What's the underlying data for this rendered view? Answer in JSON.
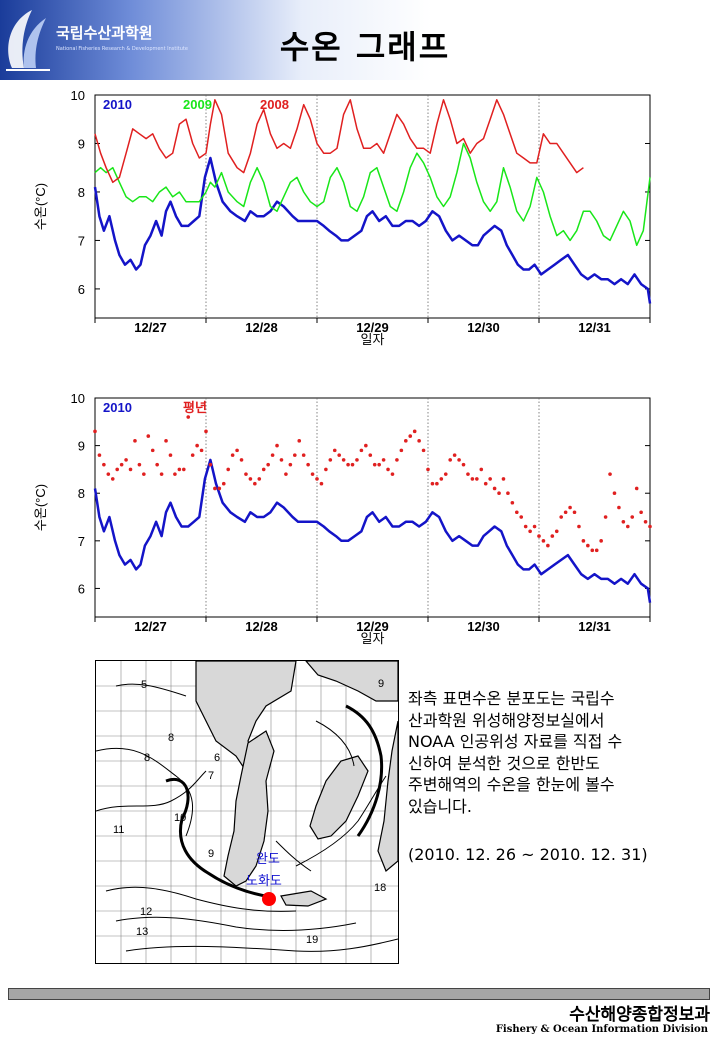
{
  "header": {
    "title": "수온 그래프",
    "logo_name": "국립수산과학원",
    "logo_subtitle": "National Fisheries Research & Development Institute"
  },
  "chart_data": [
    {
      "type": "line",
      "xlabel": "일자",
      "ylabel": "수온(°C)",
      "ylim": [
        5.4,
        10
      ],
      "yticks": [
        6,
        7,
        8,
        9,
        10
      ],
      "xticks": [
        "12/27",
        "12/28",
        "12/29",
        "12/30",
        "12/31"
      ],
      "x_range_days": [
        26.0,
        31.0
      ],
      "grid": "vertical dotted day separators",
      "legend": "top-left",
      "series": [
        {
          "name": "2010",
          "color": "#1414c8",
          "style": "line",
          "x": [
            26.0,
            26.04,
            26.08,
            26.13,
            26.18,
            26.22,
            26.27,
            26.32,
            26.37,
            26.41,
            26.45,
            26.5,
            26.55,
            26.6,
            26.64,
            26.68,
            26.73,
            26.78,
            26.84,
            26.89,
            26.94,
            26.99,
            27.04,
            27.09,
            27.15,
            27.22,
            27.28,
            27.35,
            27.4,
            27.46,
            27.52,
            27.58,
            27.64,
            27.7,
            27.78,
            27.83,
            27.89,
            27.94,
            28.0,
            28.06,
            28.11,
            28.17,
            28.22,
            28.28,
            28.34,
            28.4,
            28.45,
            28.5,
            28.56,
            28.62,
            28.68,
            28.74,
            28.8,
            28.86,
            28.92,
            28.98,
            29.04,
            29.1,
            29.16,
            29.22,
            29.28,
            29.34,
            29.4,
            29.45,
            29.5,
            29.55,
            29.6,
            29.66,
            29.71,
            29.76,
            29.81,
            29.86,
            29.91,
            29.96,
            30.02,
            30.08,
            30.14,
            30.2,
            30.26,
            30.32,
            30.38,
            30.44,
            30.5,
            30.56,
            30.62,
            30.68,
            30.74,
            30.8,
            30.86,
            30.92,
            30.98,
            31.0
          ],
          "y": [
            8.1,
            7.5,
            7.2,
            7.5,
            7.0,
            6.7,
            6.5,
            6.6,
            6.4,
            6.5,
            6.9,
            7.1,
            7.4,
            7.1,
            7.6,
            7.8,
            7.5,
            7.3,
            7.3,
            7.4,
            7.5,
            8.3,
            8.7,
            8.2,
            7.8,
            7.6,
            7.5,
            7.4,
            7.6,
            7.5,
            7.5,
            7.6,
            7.8,
            7.7,
            7.5,
            7.4,
            7.4,
            7.4,
            7.4,
            7.3,
            7.2,
            7.1,
            7.0,
            7.0,
            7.1,
            7.2,
            7.5,
            7.6,
            7.4,
            7.5,
            7.3,
            7.3,
            7.4,
            7.4,
            7.3,
            7.4,
            7.6,
            7.5,
            7.2,
            7.0,
            7.1,
            7.0,
            6.9,
            6.9,
            7.1,
            7.2,
            7.3,
            7.2,
            6.9,
            6.7,
            6.5,
            6.4,
            6.4,
            6.5,
            6.3,
            6.4,
            6.5,
            6.6,
            6.7,
            6.5,
            6.3,
            6.2,
            6.3,
            6.2,
            6.2,
            6.1,
            6.2,
            6.1,
            6.3,
            6.1,
            6.0,
            5.7
          ]
        },
        {
          "name": "2009",
          "color": "#19e619",
          "style": "line",
          "x": [
            26.0,
            26.05,
            26.1,
            26.16,
            26.22,
            26.28,
            26.34,
            26.4,
            26.46,
            26.52,
            26.58,
            26.64,
            26.7,
            26.76,
            26.82,
            26.88,
            26.94,
            27.0,
            27.04,
            27.08,
            27.14,
            27.2,
            27.28,
            27.34,
            27.4,
            27.46,
            27.52,
            27.58,
            27.64,
            27.7,
            27.76,
            27.82,
            27.88,
            27.94,
            28.0,
            28.06,
            28.12,
            28.18,
            28.24,
            28.3,
            28.36,
            28.42,
            28.48,
            28.54,
            28.6,
            28.66,
            28.72,
            28.78,
            28.84,
            28.9,
            28.96,
            29.02,
            29.08,
            29.14,
            29.2,
            29.26,
            29.32,
            29.38,
            29.44,
            29.5,
            29.56,
            29.62,
            29.68,
            29.74,
            29.8,
            29.86,
            29.92,
            29.98,
            30.04,
            30.1,
            30.16,
            30.22,
            30.28,
            30.34,
            30.4,
            30.46,
            30.52,
            30.58,
            30.64,
            30.7,
            30.76,
            30.82,
            30.88,
            30.94,
            31.0
          ],
          "y": [
            8.4,
            8.5,
            8.4,
            8.5,
            8.2,
            7.9,
            7.8,
            7.9,
            7.9,
            7.8,
            8.0,
            8.1,
            7.9,
            8.0,
            7.8,
            7.8,
            7.8,
            8.0,
            8.2,
            8.1,
            8.4,
            8.0,
            7.8,
            7.7,
            8.2,
            8.5,
            8.2,
            7.7,
            7.6,
            7.9,
            8.2,
            8.3,
            8.0,
            7.8,
            7.7,
            7.8,
            8.3,
            8.5,
            8.2,
            7.7,
            7.6,
            7.9,
            8.4,
            8.5,
            8.1,
            7.7,
            7.6,
            8.0,
            8.5,
            8.8,
            8.6,
            8.3,
            7.9,
            7.7,
            7.9,
            8.4,
            9.0,
            8.7,
            8.2,
            7.8,
            7.6,
            7.8,
            8.5,
            8.1,
            7.6,
            7.4,
            7.7,
            8.3,
            8.0,
            7.5,
            7.1,
            7.2,
            7.0,
            7.2,
            7.6,
            7.6,
            7.4,
            7.1,
            7.0,
            7.3,
            7.6,
            7.4,
            6.9,
            7.2,
            8.3
          ]
        },
        {
          "name": "2008",
          "color": "#e02020",
          "style": "line",
          "x": [
            26.0,
            26.05,
            26.1,
            26.16,
            26.22,
            26.28,
            26.34,
            26.4,
            26.46,
            26.52,
            26.58,
            26.64,
            26.7,
            26.76,
            26.82,
            26.88,
            26.94,
            27.0,
            27.04,
            27.08,
            27.14,
            27.2,
            27.28,
            27.34,
            27.4,
            27.46,
            27.52,
            27.58,
            27.64,
            27.7,
            27.76,
            27.82,
            27.88,
            27.94,
            28.0,
            28.06,
            28.12,
            28.18,
            28.24,
            28.3,
            28.36,
            28.42,
            28.48,
            28.54,
            28.6,
            28.66,
            28.72,
            28.78,
            28.84,
            28.9,
            28.96,
            29.02,
            29.08,
            29.14,
            29.2,
            29.26,
            29.32,
            29.38,
            29.44,
            29.5,
            29.56,
            29.62,
            29.68,
            29.74,
            29.8,
            29.86,
            29.92,
            29.98,
            30.04,
            30.1,
            30.16,
            30.22,
            30.28,
            30.34,
            30.4
          ],
          "y": [
            9.2,
            8.8,
            8.5,
            8.2,
            8.3,
            8.8,
            9.3,
            9.2,
            9.1,
            9.2,
            8.9,
            8.7,
            8.8,
            9.4,
            9.5,
            9.0,
            8.7,
            8.8,
            9.4,
            9.9,
            9.6,
            8.8,
            8.5,
            8.4,
            8.8,
            9.4,
            9.7,
            9.2,
            8.9,
            9.0,
            8.9,
            9.3,
            9.8,
            9.5,
            9.0,
            8.8,
            8.8,
            8.9,
            9.6,
            9.9,
            9.3,
            8.9,
            8.9,
            9.0,
            8.8,
            9.2,
            9.6,
            9.4,
            9.1,
            8.9,
            8.9,
            8.8,
            9.4,
            9.9,
            9.5,
            9.0,
            9.1,
            8.8,
            9.0,
            9.1,
            9.5,
            9.9,
            9.6,
            9.2,
            8.8,
            8.7,
            8.6,
            8.6,
            9.2,
            9.0,
            9.0,
            8.8,
            8.6,
            8.4,
            8.5
          ]
        }
      ]
    },
    {
      "type": "line",
      "xlabel": "일자",
      "ylabel": "수온(°C)",
      "ylim": [
        5.4,
        10
      ],
      "yticks": [
        6,
        7,
        8,
        9,
        10
      ],
      "xticks": [
        "12/27",
        "12/28",
        "12/29",
        "12/30",
        "12/31"
      ],
      "x_range_days": [
        26.0,
        31.0
      ],
      "grid": "vertical dotted day separators",
      "legend": "top-left",
      "series": [
        {
          "name": "2010",
          "color": "#1414c8",
          "style": "line",
          "x": [
            26.0,
            26.04,
            26.08,
            26.13,
            26.18,
            26.22,
            26.27,
            26.32,
            26.37,
            26.41,
            26.45,
            26.5,
            26.55,
            26.6,
            26.64,
            26.68,
            26.73,
            26.78,
            26.84,
            26.89,
            26.94,
            26.99,
            27.04,
            27.09,
            27.15,
            27.22,
            27.28,
            27.35,
            27.4,
            27.46,
            27.52,
            27.58,
            27.64,
            27.7,
            27.78,
            27.83,
            27.89,
            27.94,
            28.0,
            28.06,
            28.11,
            28.17,
            28.22,
            28.28,
            28.34,
            28.4,
            28.45,
            28.5,
            28.56,
            28.62,
            28.68,
            28.74,
            28.8,
            28.86,
            28.92,
            28.98,
            29.04,
            29.1,
            29.16,
            29.22,
            29.28,
            29.34,
            29.4,
            29.45,
            29.5,
            29.55,
            29.6,
            29.66,
            29.71,
            29.76,
            29.81,
            29.86,
            29.91,
            29.96,
            30.02,
            30.08,
            30.14,
            30.2,
            30.26,
            30.32,
            30.38,
            30.44,
            30.5,
            30.56,
            30.62,
            30.68,
            30.74,
            30.8,
            30.86,
            30.92,
            30.98,
            31.0
          ],
          "y": [
            8.1,
            7.5,
            7.2,
            7.5,
            7.0,
            6.7,
            6.5,
            6.6,
            6.4,
            6.5,
            6.9,
            7.1,
            7.4,
            7.1,
            7.6,
            7.8,
            7.5,
            7.3,
            7.3,
            7.4,
            7.5,
            8.3,
            8.7,
            8.2,
            7.8,
            7.6,
            7.5,
            7.4,
            7.6,
            7.5,
            7.5,
            7.6,
            7.8,
            7.7,
            7.5,
            7.4,
            7.4,
            7.4,
            7.4,
            7.3,
            7.2,
            7.1,
            7.0,
            7.0,
            7.1,
            7.2,
            7.5,
            7.6,
            7.4,
            7.5,
            7.3,
            7.3,
            7.4,
            7.4,
            7.3,
            7.4,
            7.6,
            7.5,
            7.2,
            7.0,
            7.1,
            7.0,
            6.9,
            6.9,
            7.1,
            7.2,
            7.3,
            7.2,
            6.9,
            6.7,
            6.5,
            6.4,
            6.4,
            6.5,
            6.3,
            6.4,
            6.5,
            6.6,
            6.7,
            6.5,
            6.3,
            6.2,
            6.3,
            6.2,
            6.2,
            6.1,
            6.2,
            6.1,
            6.3,
            6.1,
            6.0,
            5.7
          ]
        },
        {
          "name": "평년",
          "color": "#e02020",
          "style": "dots",
          "x": [
            26.0,
            26.04,
            26.08,
            26.12,
            26.16,
            26.2,
            26.24,
            26.28,
            26.32,
            26.36,
            26.4,
            26.44,
            26.48,
            26.52,
            26.56,
            26.6,
            26.64,
            26.68,
            26.72,
            26.76,
            26.8,
            26.84,
            26.88,
            26.92,
            26.96,
            27.0,
            27.04,
            27.08,
            27.12,
            27.16,
            27.2,
            27.24,
            27.28,
            27.32,
            27.36,
            27.4,
            27.44,
            27.48,
            27.52,
            27.56,
            27.6,
            27.64,
            27.68,
            27.72,
            27.76,
            27.8,
            27.84,
            27.88,
            27.92,
            27.96,
            28.0,
            28.04,
            28.08,
            28.12,
            28.16,
            28.2,
            28.24,
            28.28,
            28.32,
            28.36,
            28.4,
            28.44,
            28.48,
            28.52,
            28.56,
            28.6,
            28.64,
            28.68,
            28.72,
            28.76,
            28.8,
            28.84,
            28.88,
            28.92,
            28.96,
            29.0,
            29.04,
            29.08,
            29.12,
            29.16,
            29.2,
            29.24,
            29.28,
            29.32,
            29.36,
            29.4,
            29.44,
            29.48,
            29.52,
            29.56,
            29.6,
            29.64,
            29.68,
            29.72,
            29.76,
            29.8,
            29.84,
            29.88,
            29.92,
            29.96,
            30.0,
            30.04,
            30.08,
            30.12,
            30.16,
            30.2,
            30.24,
            30.28,
            30.32,
            30.36,
            30.4,
            30.44,
            30.48,
            30.52,
            30.56,
            30.6,
            30.64,
            30.68,
            30.72,
            30.76,
            30.8,
            30.84,
            30.88,
            30.92,
            30.96,
            31.0
          ],
          "y": [
            9.3,
            8.8,
            8.6,
            8.4,
            8.3,
            8.5,
            8.6,
            8.7,
            8.5,
            9.1,
            8.6,
            8.4,
            9.2,
            8.9,
            8.6,
            8.4,
            9.1,
            8.8,
            8.4,
            8.5,
            8.5,
            9.6,
            8.8,
            9.0,
            8.9,
            9.3,
            8.6,
            8.1,
            8.1,
            8.2,
            8.5,
            8.8,
            8.9,
            8.7,
            8.4,
            8.3,
            8.2,
            8.3,
            8.5,
            8.6,
            8.8,
            9.0,
            8.7,
            8.4,
            8.6,
            8.8,
            9.1,
            8.8,
            8.6,
            8.4,
            8.3,
            8.2,
            8.5,
            8.7,
            8.9,
            8.8,
            8.7,
            8.6,
            8.6,
            8.7,
            8.9,
            9.0,
            8.8,
            8.6,
            8.6,
            8.7,
            8.5,
            8.4,
            8.7,
            8.9,
            9.1,
            9.2,
            9.3,
            9.1,
            8.9,
            8.5,
            8.2,
            8.2,
            8.3,
            8.4,
            8.7,
            8.8,
            8.7,
            8.6,
            8.4,
            8.3,
            8.3,
            8.5,
            8.2,
            8.3,
            8.1,
            8.0,
            8.3,
            8.0,
            7.8,
            7.6,
            7.5,
            7.3,
            7.2,
            7.3,
            7.1,
            7.0,
            6.9,
            7.1,
            7.2,
            7.5,
            7.6,
            7.7,
            7.6,
            7.3,
            7.0,
            6.9,
            6.8,
            6.8,
            7.0,
            7.5,
            8.4,
            8.0,
            7.7,
            7.4,
            7.3,
            7.5,
            8.1,
            7.6,
            7.4,
            7.3
          ]
        }
      ]
    }
  ],
  "map": {
    "contour_labels": [
      "5",
      "9",
      "8",
      "6",
      "8",
      "7",
      "11",
      "10",
      "9",
      "12",
      "13",
      "18",
      "19"
    ],
    "place_labels": [
      "완도",
      "노화도"
    ]
  },
  "description": {
    "lines": [
      "좌측 표면수온 분포도는 국립수",
      "산과학원 위성해양정보실에서",
      "NOAA 인공위성 자료를 직접 수",
      "신하여 분석한 것으로  한반도",
      "주변해역의 수온을 한눈에 볼수",
      "있습니다."
    ],
    "date_range": "(2010. 12. 26 ~ 2010. 12. 31)"
  },
  "footer": {
    "division_kr": "수산해양종합정보과",
    "division_en": "Fishery & Ocean Information Division"
  }
}
